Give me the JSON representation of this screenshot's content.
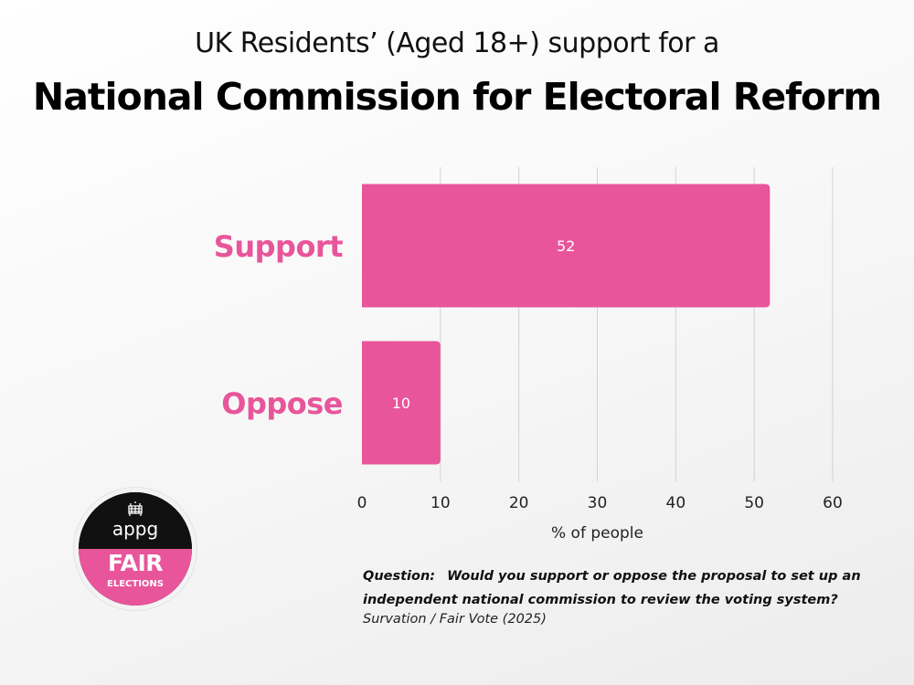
{
  "header": {
    "subtitle": "UK Residents’ (Aged 18+) support for a",
    "title": "National Commission for Electoral Reform"
  },
  "chart_data": {
    "type": "bar",
    "orientation": "horizontal",
    "categories": [
      "Support",
      "Oppose"
    ],
    "values": [
      52,
      10
    ],
    "data_labels": [
      "52",
      "10"
    ],
    "title": "National Commission for Electoral Reform",
    "subtitle": "UK Residents’ (Aged 18+) support for a",
    "xlabel": "% of people",
    "ylabel": "",
    "xlim": [
      0,
      60
    ],
    "xticks": [
      0,
      10,
      20,
      30,
      40,
      50,
      60
    ],
    "grid": "vertical",
    "bar_color": "#e8559a",
    "category_label_color": "#e8559a"
  },
  "footer": {
    "question_label": "Question:",
    "question_text": "Would you support or oppose the proposal to set up an independent national commission to review the voting system?",
    "source": "Survation / Fair Vote (2025)"
  },
  "logo": {
    "top_text": "appg",
    "main_text": "FAIR",
    "sub_text": "ELECTIONS",
    "icon": "portcullis-icon",
    "top_color": "#111111",
    "bottom_color": "#e8559a"
  }
}
